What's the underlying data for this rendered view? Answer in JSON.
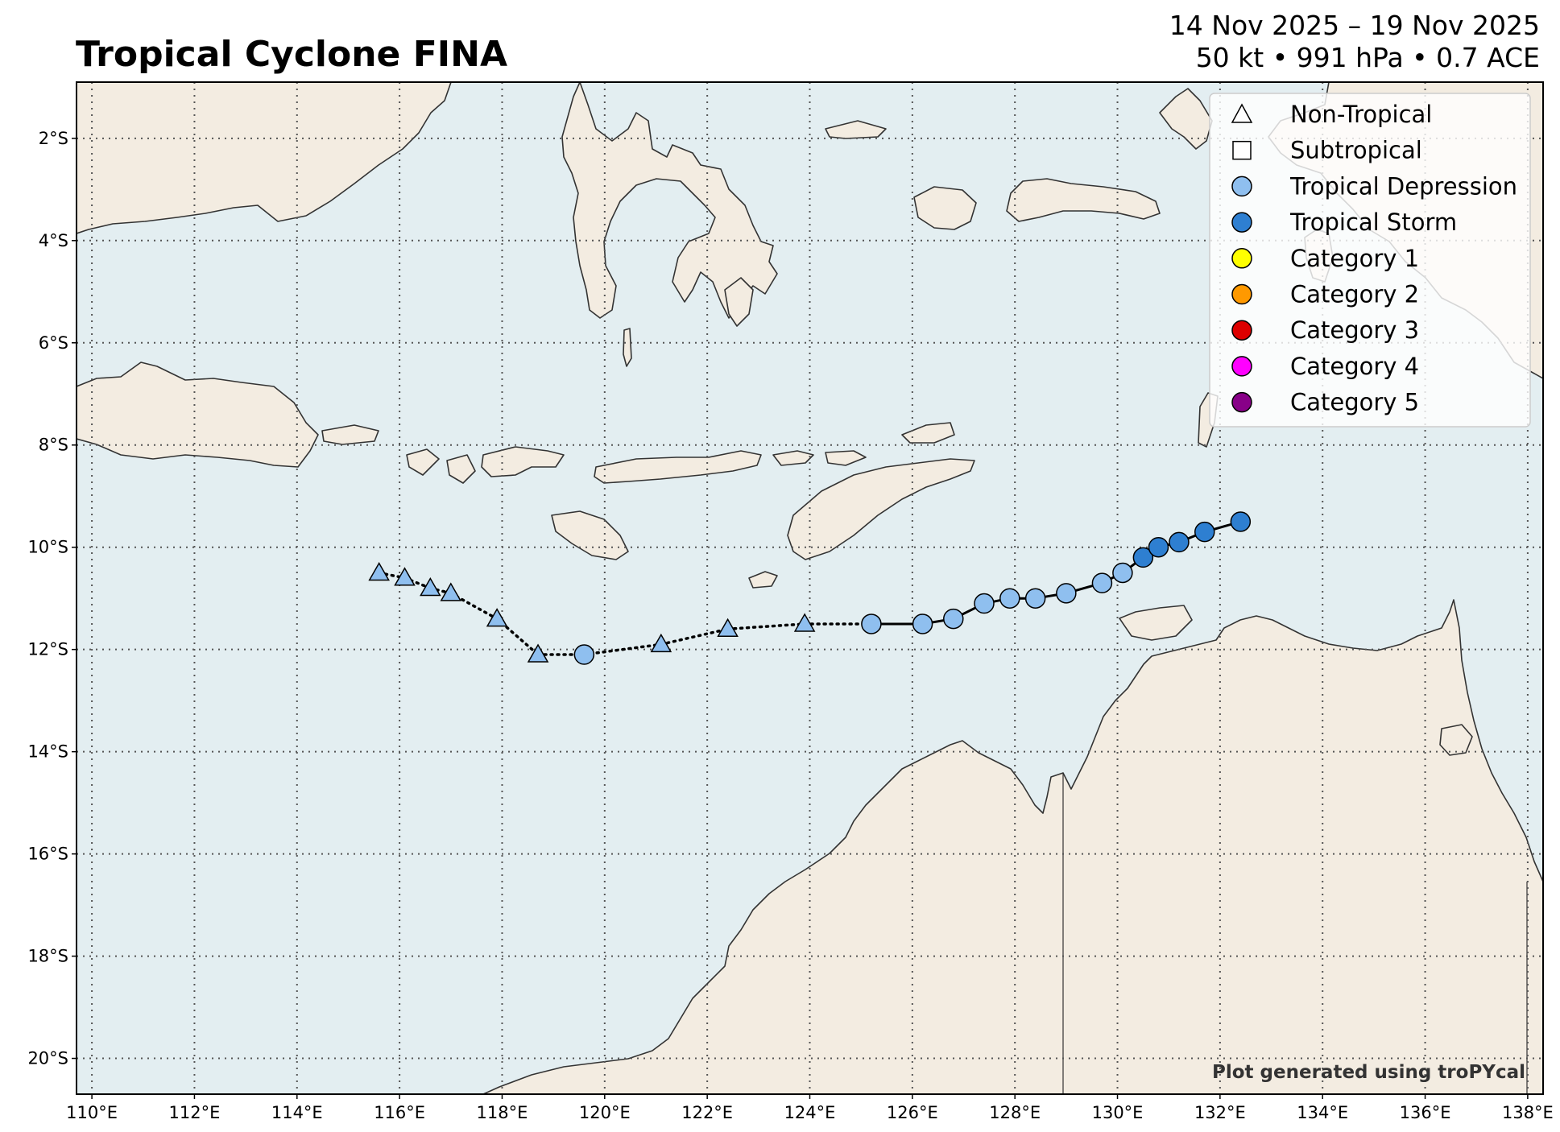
{
  "header": {
    "title": "Tropical Cyclone FINA",
    "date_range": "14 Nov 2025 – 19 Nov 2025",
    "stats": "50 kt • 991 hPa • 0.7 ACE"
  },
  "map": {
    "lon_range": [
      109.7,
      138.3
    ],
    "lat_range": [
      -20.7,
      -0.9
    ],
    "lon_ticks": [
      {
        "v": 110,
        "label": "110°E"
      },
      {
        "v": 112,
        "label": "112°E"
      },
      {
        "v": 114,
        "label": "114°E"
      },
      {
        "v": 116,
        "label": "116°E"
      },
      {
        "v": 118,
        "label": "118°E"
      },
      {
        "v": 120,
        "label": "120°E"
      },
      {
        "v": 122,
        "label": "122°E"
      },
      {
        "v": 124,
        "label": "124°E"
      },
      {
        "v": 126,
        "label": "126°E"
      },
      {
        "v": 128,
        "label": "128°E"
      },
      {
        "v": 130,
        "label": "130°E"
      },
      {
        "v": 132,
        "label": "132°E"
      },
      {
        "v": 134,
        "label": "134°E"
      },
      {
        "v": 136,
        "label": "136°E"
      },
      {
        "v": 138,
        "label": "138°E"
      }
    ],
    "lat_ticks": [
      {
        "v": -2,
        "label": "2°S"
      },
      {
        "v": -4,
        "label": "4°S"
      },
      {
        "v": -6,
        "label": "6°S"
      },
      {
        "v": -8,
        "label": "8°S"
      },
      {
        "v": -10,
        "label": "10°S"
      },
      {
        "v": -12,
        "label": "12°S"
      },
      {
        "v": -14,
        "label": "14°S"
      },
      {
        "v": -16,
        "label": "16°S"
      },
      {
        "v": -18,
        "label": "18°S"
      },
      {
        "v": -20,
        "label": "20°S"
      }
    ],
    "colors": {
      "ocean": "#e3eef1",
      "land": "#f3ece1",
      "coast": "#333333",
      "grid": "#555555",
      "td": "#8fbfef",
      "ts": "#2e7fd1"
    },
    "credit": "Plot generated using troPYcal"
  },
  "legend": [
    {
      "label": "Non-Tropical",
      "marker": "triangle",
      "color": "#ffffff"
    },
    {
      "label": "Subtropical",
      "marker": "square",
      "color": "#ffffff"
    },
    {
      "label": "Tropical Depression",
      "marker": "circle",
      "color": "#8fbfef"
    },
    {
      "label": "Tropical Storm",
      "marker": "circle",
      "color": "#2e7fd1"
    },
    {
      "label": "Category 1",
      "marker": "circle",
      "color": "#ffff00"
    },
    {
      "label": "Category 2",
      "marker": "circle",
      "color": "#ff9900"
    },
    {
      "label": "Category 3",
      "marker": "circle",
      "color": "#dd0000"
    },
    {
      "label": "Category 4",
      "marker": "circle",
      "color": "#ff00ff"
    },
    {
      "label": "Category 5",
      "marker": "circle",
      "color": "#880088"
    }
  ],
  "track": [
    {
      "lon": 115.6,
      "lat": -10.5,
      "type": "non-tropical",
      "cat": "TD"
    },
    {
      "lon": 116.1,
      "lat": -10.6,
      "type": "non-tropical",
      "cat": "TD"
    },
    {
      "lon": 116.6,
      "lat": -10.8,
      "type": "non-tropical",
      "cat": "TD"
    },
    {
      "lon": 117.0,
      "lat": -10.9,
      "type": "non-tropical",
      "cat": "TD"
    },
    {
      "lon": 117.9,
      "lat": -11.4,
      "type": "non-tropical",
      "cat": "TD"
    },
    {
      "lon": 118.7,
      "lat": -12.1,
      "type": "non-tropical",
      "cat": "TD"
    },
    {
      "lon": 119.6,
      "lat": -12.1,
      "type": "tropical",
      "cat": "TD"
    },
    {
      "lon": 121.1,
      "lat": -11.9,
      "type": "non-tropical",
      "cat": "TD"
    },
    {
      "lon": 122.4,
      "lat": -11.6,
      "type": "non-tropical",
      "cat": "TD"
    },
    {
      "lon": 123.9,
      "lat": -11.5,
      "type": "non-tropical",
      "cat": "TD"
    },
    {
      "lon": 125.2,
      "lat": -11.5,
      "type": "tropical",
      "cat": "TD"
    },
    {
      "lon": 126.2,
      "lat": -11.5,
      "type": "tropical",
      "cat": "TD"
    },
    {
      "lon": 126.8,
      "lat": -11.4,
      "type": "tropical",
      "cat": "TD"
    },
    {
      "lon": 127.4,
      "lat": -11.1,
      "type": "tropical",
      "cat": "TD"
    },
    {
      "lon": 127.9,
      "lat": -11.0,
      "type": "tropical",
      "cat": "TD"
    },
    {
      "lon": 128.4,
      "lat": -11.0,
      "type": "tropical",
      "cat": "TD"
    },
    {
      "lon": 129.0,
      "lat": -10.9,
      "type": "tropical",
      "cat": "TD"
    },
    {
      "lon": 129.7,
      "lat": -10.7,
      "type": "tropical",
      "cat": "TD"
    },
    {
      "lon": 130.1,
      "lat": -10.5,
      "type": "tropical",
      "cat": "TD"
    },
    {
      "lon": 130.5,
      "lat": -10.2,
      "type": "tropical",
      "cat": "TS"
    },
    {
      "lon": 130.8,
      "lat": -10.0,
      "type": "tropical",
      "cat": "TS"
    },
    {
      "lon": 131.2,
      "lat": -9.9,
      "type": "tropical",
      "cat": "TS"
    },
    {
      "lon": 131.7,
      "lat": -9.7,
      "type": "tropical",
      "cat": "TS"
    },
    {
      "lon": 132.4,
      "lat": -9.5,
      "type": "tropical",
      "cat": "TS"
    }
  ]
}
